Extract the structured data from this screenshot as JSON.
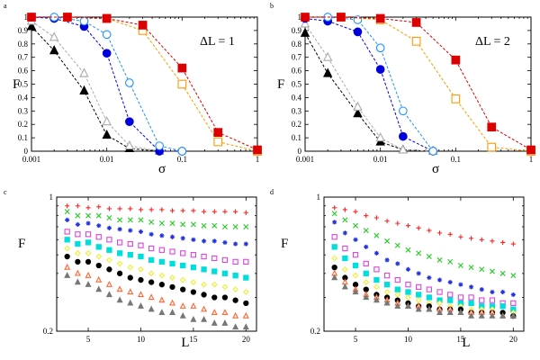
{
  "chart_data": [
    {
      "id": "a",
      "panel_label": "a",
      "type": "line",
      "xscale": "log",
      "xlim": [
        0.001,
        1
      ],
      "ylim": [
        0,
        1
      ],
      "xlabel": "σ",
      "ylabel": "F",
      "annotation": "ΔL = 1",
      "x_ticks": [
        0.001,
        0.01,
        0.1,
        1
      ],
      "x_tick_labels": [
        "0.001",
        "0.01",
        "0.1",
        "1"
      ],
      "y_ticks": [
        0,
        0.1,
        0.2,
        0.3,
        0.4,
        0.5,
        0.6,
        0.7,
        0.8,
        0.9,
        1
      ],
      "y_tick_labels": [
        "0",
        "0.1",
        "0.2",
        "0.3",
        "0.4",
        "0.5",
        "0.6",
        "0.7",
        "0.8",
        "0.9",
        "1"
      ],
      "series": [
        {
          "marker": "triangle",
          "fill": true,
          "color": "#000000",
          "x": [
            0.001,
            0.002,
            0.005,
            0.01,
            0.02,
            0.05
          ],
          "y": [
            0.93,
            0.75,
            0.45,
            0.12,
            0.02,
            0.0
          ]
        },
        {
          "marker": "triangle",
          "fill": false,
          "color": "#aaaaaa",
          "x": [
            0.001,
            0.002,
            0.005,
            0.01,
            0.02,
            0.05
          ],
          "y": [
            0.97,
            0.85,
            0.58,
            0.22,
            0.04,
            0.0
          ]
        },
        {
          "marker": "circle",
          "fill": true,
          "color": "#0000dd",
          "x": [
            0.001,
            0.002,
            0.005,
            0.01,
            0.02,
            0.05,
            0.1
          ],
          "y": [
            1.0,
            0.99,
            0.93,
            0.73,
            0.22,
            0.0,
            0.0
          ]
        },
        {
          "marker": "circle",
          "fill": false,
          "color": "#1e90ff",
          "x": [
            0.002,
            0.005,
            0.01,
            0.02,
            0.05,
            0.1
          ],
          "y": [
            1.0,
            0.97,
            0.87,
            0.51,
            0.04,
            0.0
          ]
        },
        {
          "marker": "square",
          "fill": false,
          "color": "#ff9900",
          "x": [
            0.003,
            0.01,
            0.03,
            0.1,
            0.3,
            1
          ],
          "y": [
            1.0,
            0.99,
            0.9,
            0.5,
            0.07,
            0.0
          ]
        },
        {
          "marker": "square",
          "fill": true,
          "color": "#dd0000",
          "x": [
            0.001,
            0.003,
            0.01,
            0.03,
            0.1,
            0.3,
            1
          ],
          "y": [
            1.0,
            1.0,
            0.99,
            0.94,
            0.62,
            0.14,
            0.01
          ]
        }
      ]
    },
    {
      "id": "b",
      "panel_label": "b",
      "type": "line",
      "xscale": "log",
      "xlim": [
        0.001,
        1
      ],
      "ylim": [
        0,
        1
      ],
      "xlabel": "σ",
      "ylabel": "F",
      "annotation": "ΔL = 2",
      "x_ticks": [
        0.001,
        0.01,
        0.1,
        1
      ],
      "x_tick_labels": [
        "0.001",
        "0.01",
        "0.1",
        "1"
      ],
      "y_ticks": [
        0,
        0.1,
        0.2,
        0.3,
        0.4,
        0.5,
        0.6,
        0.7,
        0.8,
        0.9,
        1
      ],
      "y_tick_labels": [
        "0",
        "0.1",
        "0.2",
        "0.3",
        "0.4",
        "0.5",
        "0.6",
        "0.7",
        "0.8",
        "0.9",
        "1"
      ],
      "series": [
        {
          "marker": "triangle",
          "fill": true,
          "color": "#000000",
          "x": [
            0.001,
            0.002,
            0.005,
            0.01,
            0.02,
            0.05
          ],
          "y": [
            0.88,
            0.58,
            0.28,
            0.07,
            0.01,
            0.0
          ]
        },
        {
          "marker": "triangle",
          "fill": false,
          "color": "#aaaaaa",
          "x": [
            0.001,
            0.002,
            0.005,
            0.01,
            0.02,
            0.05
          ],
          "y": [
            0.95,
            0.7,
            0.33,
            0.1,
            0.01,
            0.0
          ]
        },
        {
          "marker": "circle",
          "fill": true,
          "color": "#0000dd",
          "x": [
            0.001,
            0.002,
            0.005,
            0.01,
            0.02,
            0.05
          ],
          "y": [
            0.99,
            0.97,
            0.89,
            0.61,
            0.11,
            0.0
          ]
        },
        {
          "marker": "circle",
          "fill": false,
          "color": "#1e90ff",
          "x": [
            0.002,
            0.005,
            0.01,
            0.02,
            0.05
          ],
          "y": [
            1.0,
            0.98,
            0.77,
            0.3,
            0.0
          ]
        },
        {
          "marker": "square",
          "fill": false,
          "color": "#ff9900",
          "x": [
            0.003,
            0.01,
            0.03,
            0.1,
            0.3,
            1
          ],
          "y": [
            1.0,
            0.98,
            0.82,
            0.39,
            0.03,
            0.0
          ]
        },
        {
          "marker": "square",
          "fill": true,
          "color": "#dd0000",
          "x": [
            0.001,
            0.003,
            0.01,
            0.03,
            0.1,
            0.3,
            1
          ],
          "y": [
            1.0,
            1.0,
            0.99,
            0.96,
            0.68,
            0.18,
            0.01
          ]
        }
      ]
    },
    {
      "id": "c",
      "panel_label": "c",
      "type": "scatter",
      "xscale": "linear",
      "yscale": "log",
      "xlim": [
        2,
        21
      ],
      "ylim": [
        0.2,
        1
      ],
      "xlabel": "L",
      "ylabel": "F",
      "x_ticks": [
        5,
        10,
        15,
        20
      ],
      "x_tick_labels": [
        "5",
        "10",
        "15",
        "20"
      ],
      "y_ticks": [
        0.2,
        1
      ],
      "y_tick_labels": [
        "0.2",
        "1"
      ],
      "L": [
        3,
        4,
        5,
        6,
        7,
        8,
        9,
        10,
        11,
        12,
        13,
        14,
        15,
        16,
        17,
        18,
        19,
        20
      ],
      "series": [
        {
          "marker": "plus",
          "color": "#ff2222",
          "values": [
            0.9,
            0.9,
            0.88,
            0.89,
            0.87,
            0.87,
            0.87,
            0.86,
            0.86,
            0.86,
            0.85,
            0.85,
            0.85,
            0.84,
            0.84,
            0.84,
            0.84,
            0.83
          ]
        },
        {
          "marker": "x",
          "color": "#22cc22",
          "values": [
            0.84,
            0.8,
            0.8,
            0.8,
            0.78,
            0.76,
            0.76,
            0.76,
            0.74,
            0.73,
            0.73,
            0.72,
            0.72,
            0.71,
            0.71,
            0.7,
            0.7,
            0.7
          ]
        },
        {
          "marker": "star",
          "color": "#2233dd",
          "values": [
            0.76,
            0.72,
            0.73,
            0.71,
            0.69,
            0.68,
            0.67,
            0.66,
            0.64,
            0.63,
            0.62,
            0.61,
            0.6,
            0.59,
            0.59,
            0.58,
            0.57,
            0.57
          ]
        },
        {
          "marker": "square-open",
          "color": "#dd44dd",
          "values": [
            0.66,
            0.64,
            0.64,
            0.62,
            0.6,
            0.58,
            0.57,
            0.56,
            0.54,
            0.53,
            0.52,
            0.51,
            0.5,
            0.49,
            0.48,
            0.47,
            0.46,
            0.46
          ]
        },
        {
          "marker": "square-filled",
          "color": "#00dddd",
          "values": [
            0.6,
            0.57,
            0.58,
            0.55,
            0.53,
            0.51,
            0.5,
            0.49,
            0.47,
            0.46,
            0.45,
            0.44,
            0.43,
            0.42,
            0.41,
            0.4,
            0.39,
            0.38
          ]
        },
        {
          "marker": "diamond-open",
          "color": "#eeee33",
          "values": [
            0.54,
            0.51,
            0.51,
            0.49,
            0.47,
            0.45,
            0.43,
            0.42,
            0.4,
            0.39,
            0.38,
            0.37,
            0.36,
            0.35,
            0.35,
            0.34,
            0.33,
            0.32
          ]
        },
        {
          "marker": "circle-filled",
          "color": "#000000",
          "values": [
            0.49,
            0.46,
            0.46,
            0.44,
            0.42,
            0.4,
            0.38,
            0.37,
            0.36,
            0.35,
            0.34,
            0.33,
            0.32,
            0.31,
            0.3,
            0.3,
            0.29,
            0.28
          ]
        },
        {
          "marker": "triangle-open",
          "color": "#ff6633",
          "values": [
            0.43,
            0.4,
            0.39,
            0.37,
            0.35,
            0.33,
            0.32,
            0.31,
            0.3,
            0.29,
            0.28,
            0.27,
            0.27,
            0.26,
            0.25,
            0.25,
            0.24,
            0.24
          ]
        },
        {
          "marker": "triangle-filled",
          "color": "#777777",
          "values": [
            0.39,
            0.36,
            0.35,
            0.33,
            0.31,
            0.29,
            0.28,
            0.27,
            0.26,
            0.25,
            0.25,
            0.24,
            0.23,
            0.23,
            0.22,
            0.22,
            0.21,
            0.21
          ]
        }
      ]
    },
    {
      "id": "d",
      "panel_label": "d",
      "type": "scatter",
      "xscale": "linear",
      "yscale": "log",
      "xlim": [
        2,
        21
      ],
      "ylim": [
        0.2,
        1
      ],
      "xlabel": "L",
      "ylabel": "F",
      "x_ticks": [
        5,
        10,
        15,
        20
      ],
      "x_tick_labels": [
        "5",
        "10",
        "15",
        "20"
      ],
      "y_ticks": [
        0.2,
        1
      ],
      "y_tick_labels": [
        "0.2",
        "1"
      ],
      "L": [
        3,
        4,
        5,
        6,
        7,
        8,
        9,
        10,
        11,
        12,
        13,
        14,
        15,
        16,
        17,
        18,
        19,
        20
      ],
      "series": [
        {
          "marker": "plus",
          "color": "#ff2222",
          "values": [
            0.88,
            0.86,
            0.84,
            0.8,
            0.78,
            0.75,
            0.73,
            0.71,
            0.69,
            0.67,
            0.65,
            0.64,
            0.62,
            0.61,
            0.6,
            0.59,
            0.58,
            0.57
          ]
        },
        {
          "marker": "x",
          "color": "#22cc22",
          "values": [
            0.82,
            0.76,
            0.71,
            0.67,
            0.63,
            0.59,
            0.56,
            0.53,
            0.51,
            0.49,
            0.47,
            0.46,
            0.44,
            0.43,
            0.42,
            0.41,
            0.4,
            0.39
          ]
        },
        {
          "marker": "star",
          "color": "#2233dd",
          "values": [
            0.74,
            0.65,
            0.6,
            0.55,
            0.51,
            0.47,
            0.45,
            0.42,
            0.4,
            0.38,
            0.37,
            0.36,
            0.35,
            0.34,
            0.33,
            0.32,
            0.32,
            0.31
          ]
        },
        {
          "marker": "square-open",
          "color": "#dd44dd",
          "values": [
            0.62,
            0.54,
            0.5,
            0.45,
            0.42,
            0.39,
            0.37,
            0.35,
            0.34,
            0.33,
            0.32,
            0.31,
            0.3,
            0.3,
            0.29,
            0.29,
            0.28,
            0.28
          ]
        },
        {
          "marker": "square-filled",
          "color": "#00dddd",
          "values": [
            0.55,
            0.48,
            0.44,
            0.4,
            0.37,
            0.35,
            0.33,
            0.32,
            0.31,
            0.3,
            0.29,
            0.29,
            0.28,
            0.28,
            0.27,
            0.27,
            0.27,
            0.26
          ]
        },
        {
          "marker": "diamond-open",
          "color": "#eeee33",
          "values": [
            0.48,
            0.42,
            0.39,
            0.36,
            0.34,
            0.32,
            0.31,
            0.3,
            0.29,
            0.28,
            0.28,
            0.27,
            0.27,
            0.26,
            0.26,
            0.26,
            0.25,
            0.25
          ]
        },
        {
          "marker": "circle-filled",
          "color": "#000000",
          "values": [
            0.43,
            0.38,
            0.35,
            0.33,
            0.31,
            0.3,
            0.29,
            0.28,
            0.27,
            0.27,
            0.26,
            0.26,
            0.26,
            0.25,
            0.25,
            0.25,
            0.25,
            0.24
          ]
        },
        {
          "marker": "triangle-open",
          "color": "#ff6633",
          "values": [
            0.4,
            0.36,
            0.33,
            0.31,
            0.3,
            0.29,
            0.28,
            0.27,
            0.27,
            0.26,
            0.26,
            0.26,
            0.25,
            0.25,
            0.25,
            0.25,
            0.24,
            0.24
          ]
        },
        {
          "marker": "triangle-filled",
          "color": "#777777",
          "values": [
            0.38,
            0.34,
            0.32,
            0.3,
            0.29,
            0.28,
            0.27,
            0.27,
            0.26,
            0.26,
            0.25,
            0.25,
            0.25,
            0.24,
            0.24,
            0.24,
            0.24,
            0.24
          ]
        }
      ]
    }
  ]
}
